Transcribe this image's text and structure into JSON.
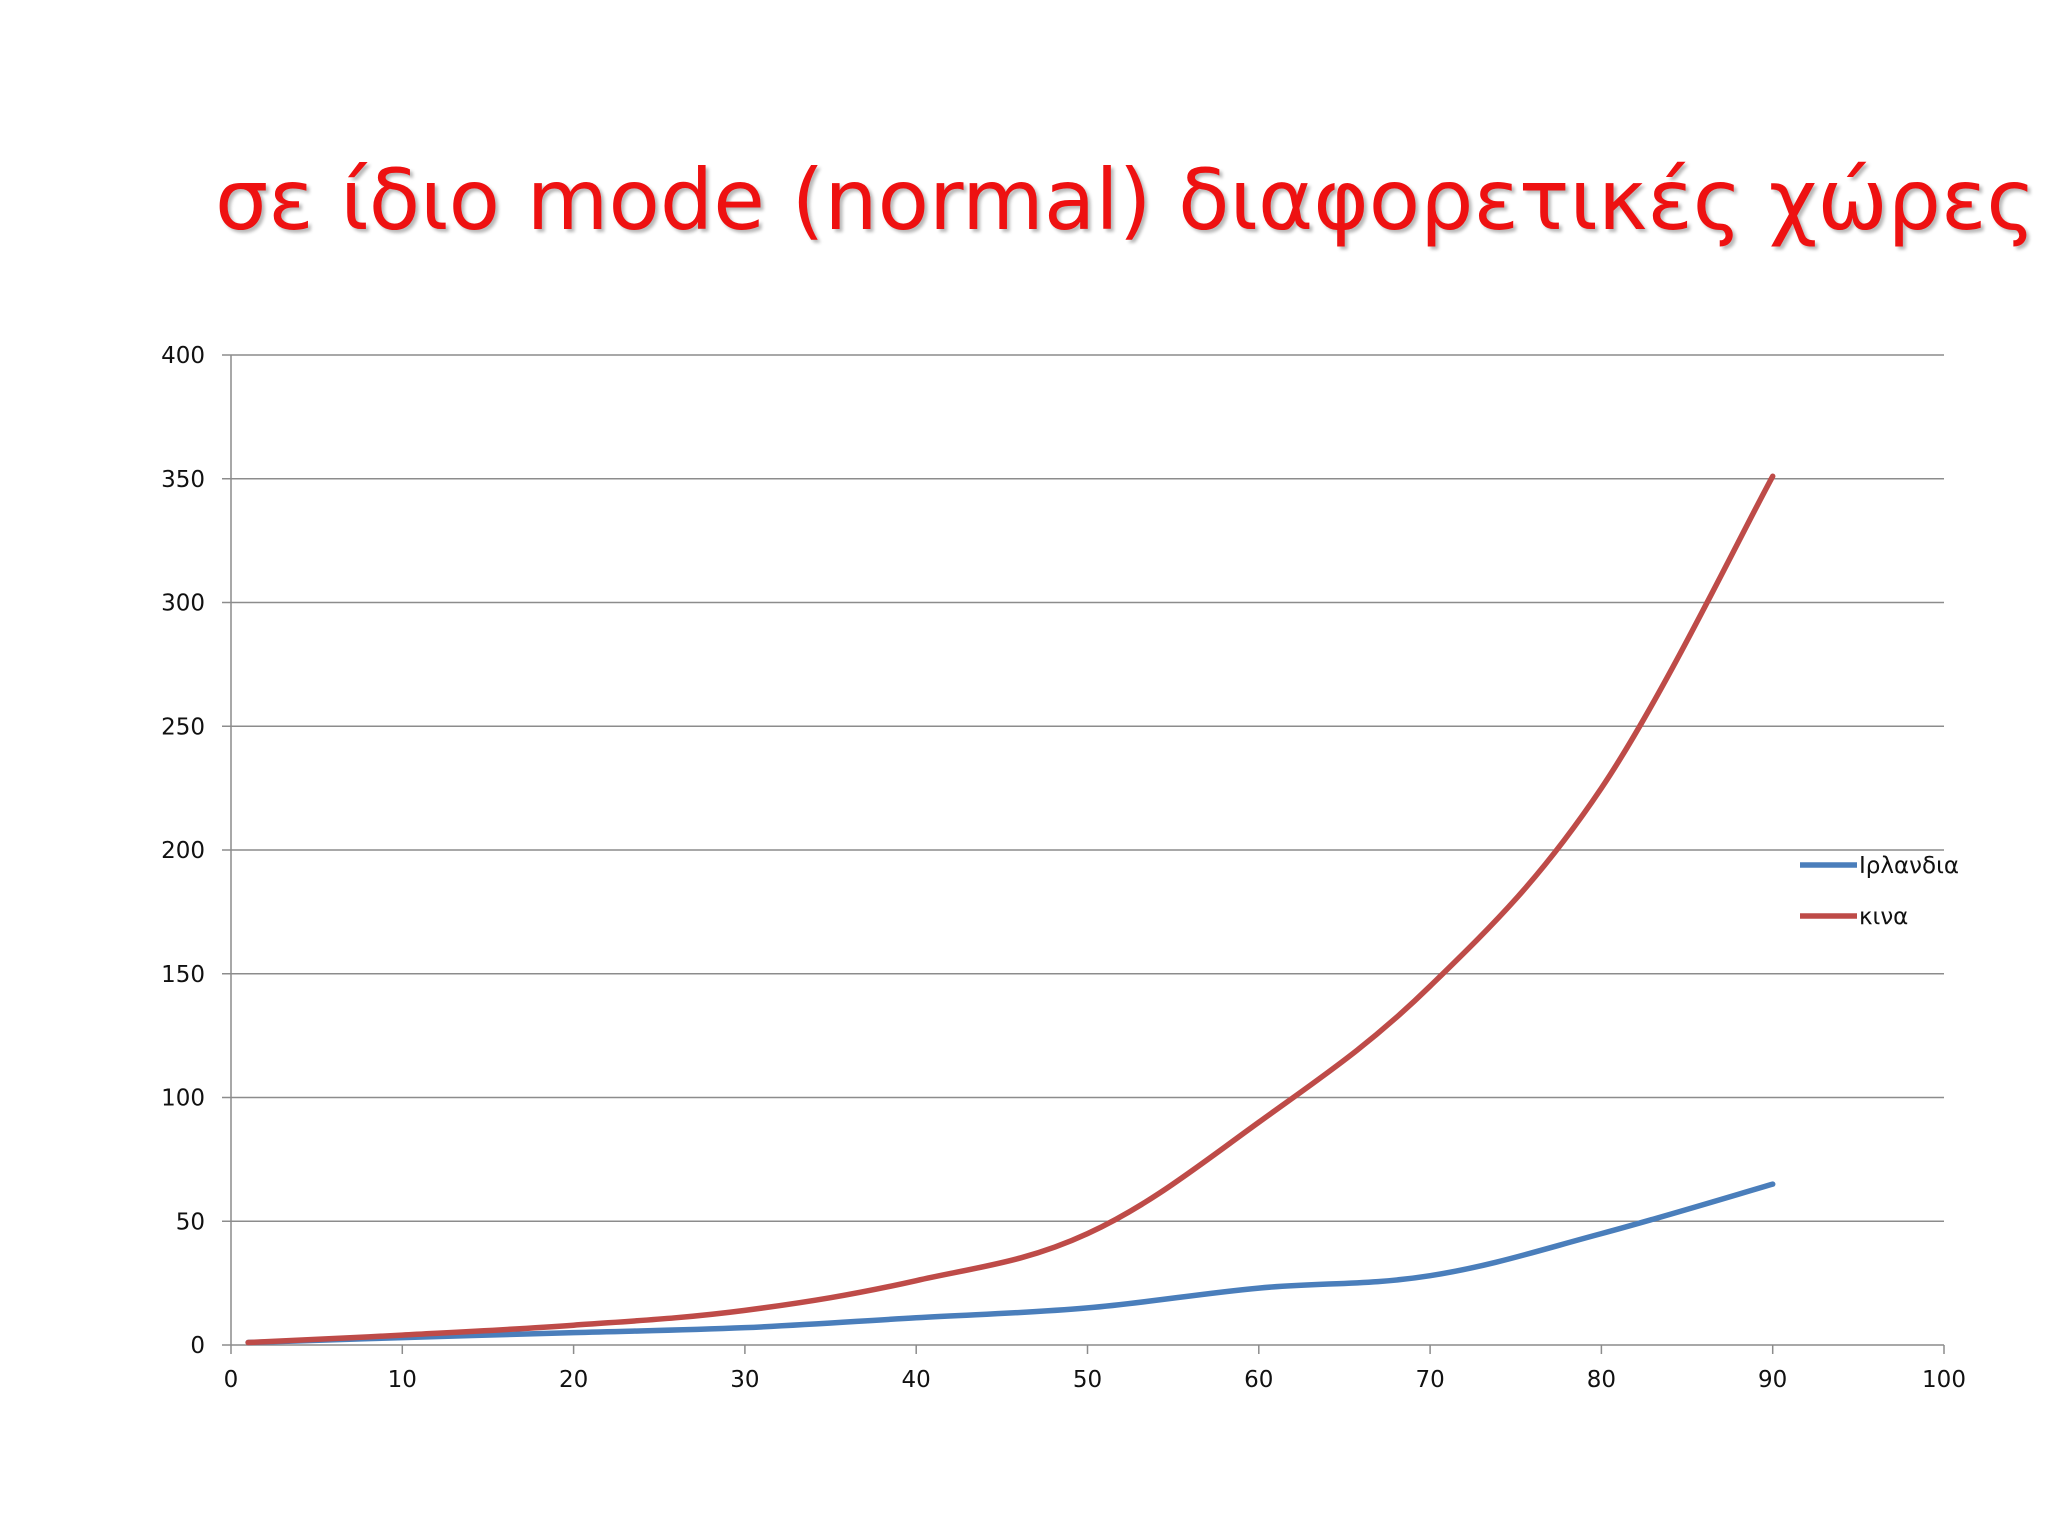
{
  "slide": {
    "title": "σε ίδιο mode (normal)  διαφορετικές χώρες"
  },
  "chart_data": {
    "type": "line",
    "title": "",
    "xlabel": "",
    "ylabel": "",
    "xlim": [
      0,
      100
    ],
    "ylim": [
      0,
      400
    ],
    "x_ticks": [
      0,
      10,
      20,
      30,
      40,
      50,
      60,
      70,
      80,
      90,
      100
    ],
    "y_ticks": [
      0,
      50,
      100,
      150,
      200,
      250,
      300,
      350,
      400
    ],
    "grid": "horizontal",
    "legend_position": "right",
    "smooth": true,
    "series": [
      {
        "name": "Ιρλανδια",
        "color": "#4a7ebb",
        "x": [
          1,
          10,
          20,
          30,
          40,
          50,
          60,
          70,
          80,
          90
        ],
        "y": [
          1,
          3,
          5,
          7,
          11,
          15,
          23,
          28,
          45,
          65
        ]
      },
      {
        "name": "κινα",
        "color": "#be4b48",
        "x": [
          1,
          10,
          20,
          30,
          40,
          50,
          60,
          70,
          80,
          90
        ],
        "y": [
          1,
          4,
          8,
          14,
          26,
          45,
          90,
          145,
          225,
          351
        ]
      }
    ]
  }
}
